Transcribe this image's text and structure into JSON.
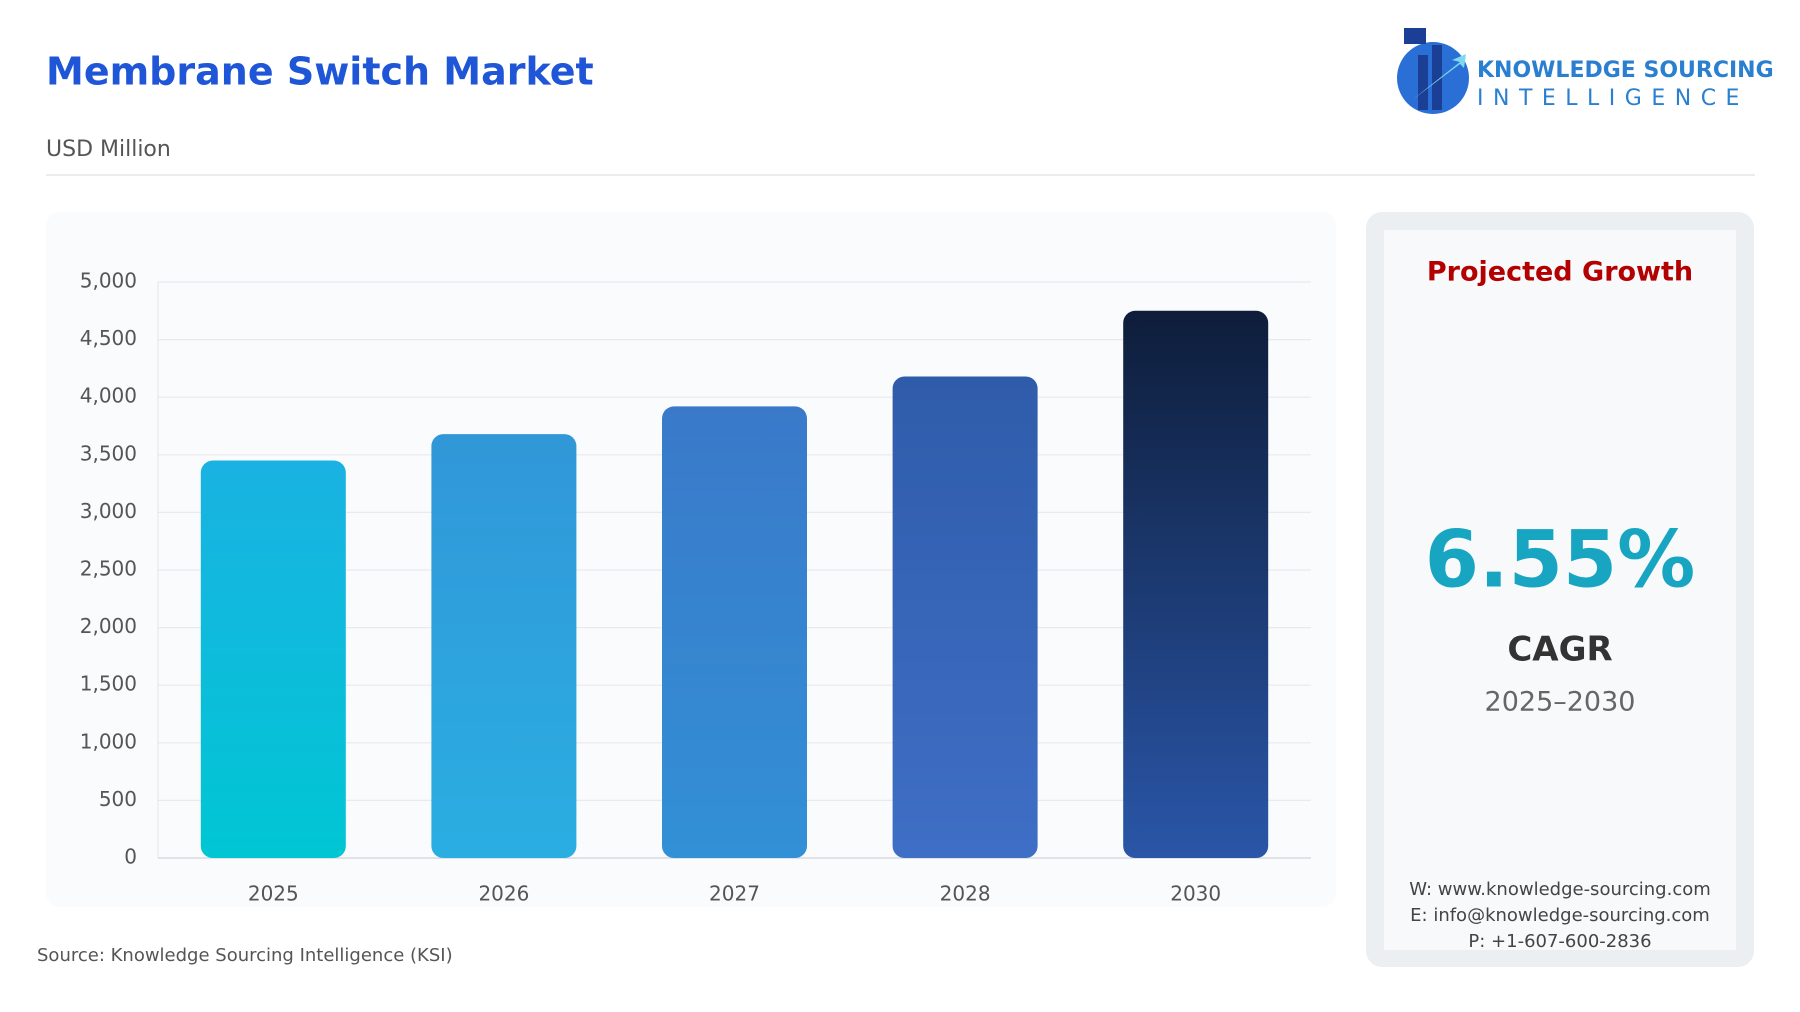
{
  "header": {
    "title": "Membrane Switch Market",
    "subtitle": "USD Million",
    "logo_line1": "KNOWLEDGE SOURCING",
    "logo_line2": "INTELLIGENCE"
  },
  "chart_data": {
    "type": "bar",
    "categories": [
      "2025",
      "2026",
      "2027",
      "2028",
      "2030"
    ],
    "values": [
      3450,
      3680,
      3920,
      4180,
      4750
    ],
    "colors": [
      [
        "#1ab2e2",
        "#00c6d4"
      ],
      [
        "#3197d8",
        "#2aaee2"
      ],
      [
        "#3a79c9",
        "#3290d6"
      ],
      [
        "#2f5caa",
        "#3f6ec6"
      ],
      [
        "#0e1d3a",
        "#2a56a8"
      ]
    ],
    "ylim": [
      0,
      5000
    ],
    "yticks": [
      0,
      500,
      {
        "value": 1000,
        "label": "1,000"
      },
      {
        "value": 1500,
        "label": "1,500"
      },
      {
        "value": 2000,
        "label": "2,000"
      },
      {
        "value": 2500,
        "label": "2,500"
      },
      {
        "value": 3000,
        "label": "3,000"
      },
      {
        "value": 3500,
        "label": "3,500"
      },
      {
        "value": 4000,
        "label": "4,000"
      },
      {
        "value": 4500,
        "label": "4,500"
      },
      {
        "value": 5000,
        "label": "5,000"
      }
    ],
    "grid": true
  },
  "panel": {
    "heading": "Projected Growth",
    "value": "6.55%",
    "label": "CAGR",
    "period": "2025–2030",
    "contacts": [
      "W: www.knowledge-sourcing.com",
      "E: info@knowledge-sourcing.com",
      "P: +1-607-600-2836"
    ]
  },
  "source": "Source: Knowledge Sourcing Intelligence (KSI)"
}
